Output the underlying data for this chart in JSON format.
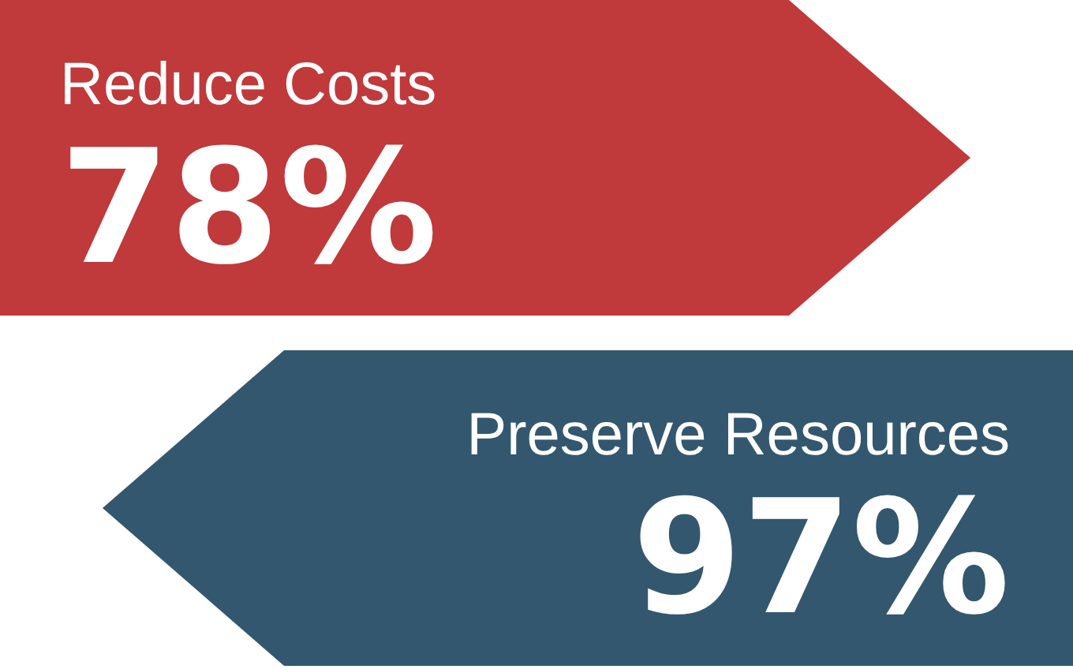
{
  "chart_data": {
    "type": "other",
    "categories": [
      "Reduce Costs",
      "Preserve Resources"
    ],
    "values": [
      78,
      97
    ],
    "value_labels": [
      "78%",
      "97%"
    ],
    "colors": [
      "#c0393b",
      "#33576e"
    ]
  }
}
